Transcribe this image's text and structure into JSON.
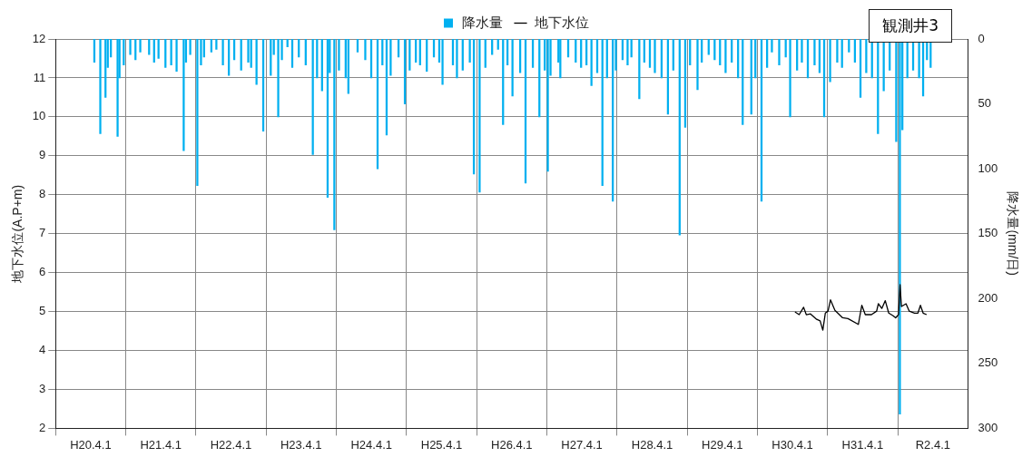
{
  "chart_data": {
    "type": "line",
    "title": "観測井3",
    "ylabel": "地下水位(A.P+m)",
    "y2label": "降水量(mm/日)",
    "legend": "top",
    "grid": true,
    "xlim": [
      "2008-04-01",
      "2020-04-01"
    ],
    "xticks": [
      {
        "value": "2008-04-01",
        "label": "H20.4.1"
      },
      {
        "value": "2009-04-01",
        "label": "H21.4.1"
      },
      {
        "value": "2010-04-01",
        "label": "H22.4.1"
      },
      {
        "value": "2011-04-01",
        "label": "H23.4.1"
      },
      {
        "value": "2012-04-01",
        "label": "H24.4.1"
      },
      {
        "value": "2013-04-01",
        "label": "H25.4.1"
      },
      {
        "value": "2014-04-01",
        "label": "H26.4.1"
      },
      {
        "value": "2015-04-01",
        "label": "H27.4.1"
      },
      {
        "value": "2016-04-01",
        "label": "H28.4.1"
      },
      {
        "value": "2017-04-01",
        "label": "H29.4.1"
      },
      {
        "value": "2018-04-01",
        "label": "H30.4.1"
      },
      {
        "value": "2019-04-01",
        "label": "H31.4.1"
      },
      {
        "value": "2020-04-01",
        "label": "R2.4.1"
      }
    ],
    "ylim": [
      2,
      12
    ],
    "yticks": [
      2,
      3,
      4,
      5,
      6,
      7,
      8,
      9,
      10,
      11,
      12
    ],
    "y2lim": [
      300,
      0
    ],
    "y2ticks": [
      0,
      50,
      100,
      150,
      200,
      250,
      300
    ],
    "series": [
      {
        "name": "降水量",
        "type": "bar",
        "axis": "y2",
        "color": "#00b0f0",
        "x": [
          "2008-04-20",
          "2008-05-21",
          "2008-06-17",
          "2008-06-29",
          "2008-07-15",
          "2008-08-19",
          "2008-08-29",
          "2008-09-20",
          "2008-10-24",
          "2008-11-20",
          "2008-12-15",
          "2009-01-30",
          "2009-02-25",
          "2009-03-20",
          "2009-04-25",
          "2009-05-25",
          "2009-06-22",
          "2009-07-29",
          "2009-08-10",
          "2009-09-01",
          "2009-10-08",
          "2009-10-27",
          "2009-11-12",
          "2009-12-20",
          "2010-01-15",
          "2010-02-18",
          "2010-03-21",
          "2010-04-18",
          "2010-05-24",
          "2010-06-30",
          "2010-07-15",
          "2010-08-12",
          "2010-09-16",
          "2010-10-25",
          "2010-11-10",
          "2010-12-03",
          "2010-12-22",
          "2011-01-20",
          "2011-02-14",
          "2011-03-20",
          "2011-04-25",
          "2011-06-01",
          "2011-06-23",
          "2011-07-19",
          "2011-08-17",
          "2011-08-28",
          "2011-09-21",
          "2011-10-15",
          "2011-11-19",
          "2011-12-03",
          "2012-01-20",
          "2012-02-29",
          "2012-03-31",
          "2012-05-03",
          "2012-05-28",
          "2012-06-19",
          "2012-07-10",
          "2012-08-20",
          "2012-09-22",
          "2012-10-17",
          "2012-11-18",
          "2012-12-10",
          "2013-01-14",
          "2013-02-20",
          "2013-03-20",
          "2013-04-06",
          "2013-05-30",
          "2013-06-20",
          "2013-07-20",
          "2013-08-26",
          "2013-09-16",
          "2013-10-16",
          "2013-11-15",
          "2013-12-20",
          "2014-01-20",
          "2014-02-15",
          "2014-03-10",
          "2014-04-05",
          "2014-05-15",
          "2014-06-12",
          "2014-07-20",
          "2014-08-23",
          "2014-09-20",
          "2014-10-06",
          "2014-10-20",
          "2014-11-30",
          "2014-12-10",
          "2015-01-20",
          "2015-02-28",
          "2015-03-28",
          "2015-04-25",
          "2015-05-21",
          "2015-06-20",
          "2015-07-17",
          "2015-08-10",
          "2015-09-09",
          "2015-09-25",
          "2015-10-30",
          "2015-11-25",
          "2015-12-15",
          "2016-01-25",
          "2016-02-20",
          "2016-03-20",
          "2016-04-15",
          "2016-05-20",
          "2016-06-22",
          "2016-07-20",
          "2016-08-22",
          "2016-09-20",
          "2016-10-15",
          "2016-11-23",
          "2016-12-15",
          "2017-01-20",
          "2017-02-20",
          "2017-03-20",
          "2017-04-18",
          "2017-05-20",
          "2017-06-22",
          "2017-07-16",
          "2017-08-30",
          "2017-09-20",
          "2017-10-22",
          "2017-11-20",
          "2017-12-15",
          "2018-01-22",
          "2018-02-25",
          "2018-03-20",
          "2018-04-25",
          "2018-05-20",
          "2018-06-20",
          "2018-07-25",
          "2018-08-20",
          "2018-09-13",
          "2018-10-14",
          "2018-11-20",
          "2018-12-15",
          "2019-01-20",
          "2019-02-20",
          "2019-03-21",
          "2019-04-20",
          "2019-05-20",
          "2019-06-20",
          "2019-07-20",
          "2019-08-20",
          "2019-09-23",
          "2019-10-12",
          "2019-10-25",
          "2019-11-20",
          "2019-12-20",
          "2020-01-20",
          "2020-02-10",
          "2020-03-01",
          "2020-03-20"
        ],
        "values": [
          18,
          73,
          45,
          22,
          14,
          75,
          30,
          20,
          12,
          16,
          10,
          12,
          18,
          15,
          22,
          20,
          25,
          86,
          18,
          12,
          113,
          20,
          14,
          10,
          8,
          20,
          28,
          16,
          24,
          18,
          22,
          35,
          71,
          28,
          12,
          60,
          16,
          6,
          22,
          14,
          20,
          89,
          30,
          40,
          122,
          26,
          147,
          24,
          30,
          42,
          10,
          16,
          30,
          100,
          20,
          74,
          28,
          14,
          50,
          24,
          18,
          20,
          25,
          14,
          18,
          35,
          20,
          30,
          24,
          18,
          104,
          118,
          22,
          12,
          8,
          66,
          20,
          44,
          26,
          111,
          22,
          60,
          24,
          102,
          28,
          18,
          30,
          14,
          18,
          22,
          20,
          36,
          26,
          113,
          30,
          125,
          24,
          16,
          20,
          14,
          46,
          18,
          22,
          26,
          30,
          58,
          24,
          151,
          68,
          20,
          39,
          18,
          12,
          16,
          20,
          26,
          18,
          30,
          66,
          58,
          30,
          125,
          22,
          10,
          20,
          14,
          60,
          24,
          18,
          30,
          20,
          26,
          60,
          33,
          18,
          22,
          10,
          18,
          45,
          26,
          30,
          73,
          40,
          24,
          79,
          289,
          70,
          30,
          24,
          30,
          44,
          16,
          22
        ]
      },
      {
        "name": "地下水位",
        "color": "#000000",
        "x": [
          "2018-04-14",
          "2018-05-06",
          "2018-05-29",
          "2018-06-12",
          "2018-07-04",
          "2018-08-05",
          "2018-08-23",
          "2018-09-06",
          "2018-09-19",
          "2018-10-03",
          "2018-10-16",
          "2018-11-08",
          "2018-12-18",
          "2019-01-15",
          "2019-03-10",
          "2019-03-19",
          "2019-03-28",
          "2019-04-15",
          "2019-05-17",
          "2019-06-13",
          "2019-06-22",
          "2019-07-10",
          "2019-07-28",
          "2019-08-15",
          "2019-09-07",
          "2019-09-20",
          "2019-10-05",
          "2019-10-13",
          "2019-10-20",
          "2019-11-13",
          "2019-11-30",
          "2019-12-27",
          "2020-01-14",
          "2020-01-27",
          "2020-02-10",
          "2020-02-28"
        ],
        "values": [
          4.99,
          4.92,
          5.11,
          4.92,
          4.94,
          4.8,
          4.76,
          4.52,
          4.96,
          5.01,
          5.3,
          5.03,
          4.84,
          4.82,
          4.67,
          4.92,
          5.16,
          4.92,
          4.92,
          5.01,
          5.2,
          5.08,
          5.28,
          4.96,
          4.89,
          4.84,
          4.92,
          5.69,
          5.13,
          5.2,
          5.01,
          4.96,
          4.96,
          5.16,
          4.96,
          4.92
        ]
      }
    ]
  }
}
